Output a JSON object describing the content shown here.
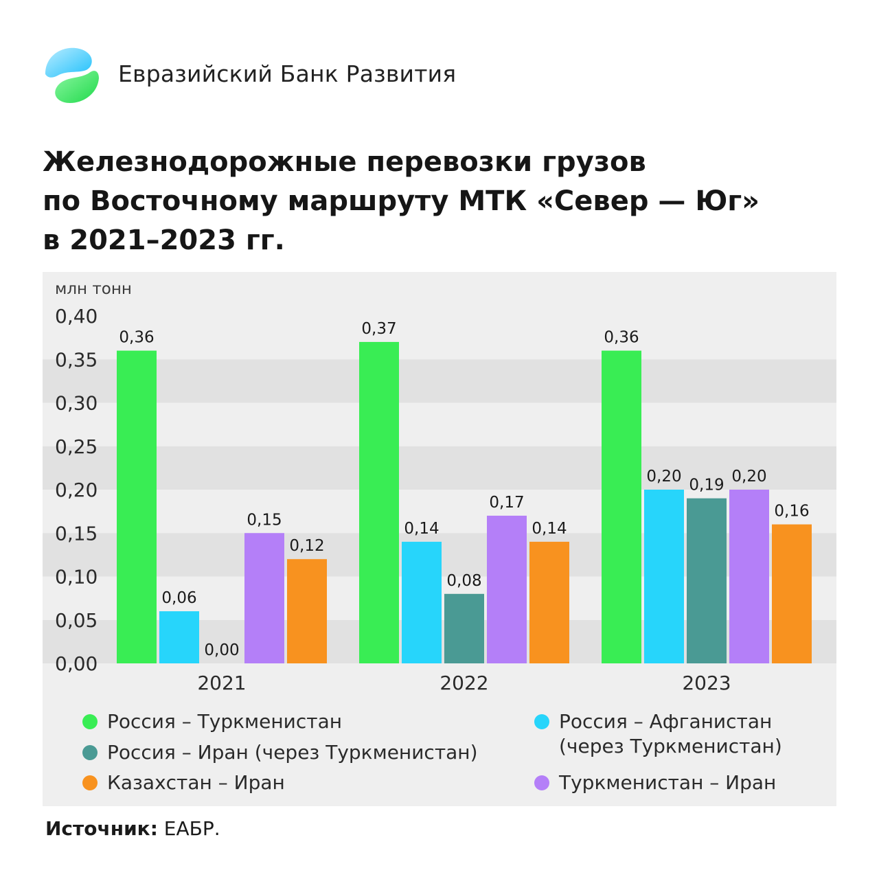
{
  "brand": {
    "name": "Евразийский Банк Развития"
  },
  "title": {
    "line1": "Железнодорожные перевозки грузов",
    "line2": "по Восточному маршруту МТК «Север — Юг»",
    "line3": "в 2021–2023 гг."
  },
  "source": {
    "label": "Источник:",
    "value": "ЕАБР."
  },
  "colors": {
    "logo_blue": "#34c8ff",
    "logo_green": "#3ee86a",
    "panel_bg": "#efefef",
    "stripe_dark": "#e1e1e1"
  },
  "chart_data": {
    "type": "bar",
    "ylabel": "млн тонн",
    "ylim": [
      0,
      0.4
    ],
    "yticks": [
      "0,00",
      "0,05",
      "0,10",
      "0,15",
      "0,20",
      "0,25",
      "0,30",
      "0,35",
      "0,40"
    ],
    "categories": [
      "2021",
      "2022",
      "2023"
    ],
    "grid": "alternating horizontal bands",
    "series": [
      {
        "name": "Россия – Туркменистан",
        "color": "#39ed54",
        "values": [
          0.36,
          0.37,
          0.36
        ],
        "labels": [
          "0,36",
          "0,37",
          "0,36"
        ]
      },
      {
        "name": "Россия – Афганистан (через Туркменистан)",
        "color": "#27d5fb",
        "values": [
          0.06,
          0.14,
          0.2
        ],
        "labels": [
          "0,06",
          "0,14",
          "0,20"
        ]
      },
      {
        "name": "Россия – Иран (через Туркменистан)",
        "color": "#4a9a94",
        "values": [
          0.0,
          0.08,
          0.19
        ],
        "labels": [
          "0,00",
          "0,08",
          "0,19"
        ]
      },
      {
        "name": "Туркменистан – Иран",
        "color": "#b47ff8",
        "values": [
          0.15,
          0.17,
          0.2
        ],
        "labels": [
          "0,15",
          "0,17",
          "0,20"
        ]
      },
      {
        "name": "Казахстан – Иран",
        "color": "#f8921f",
        "values": [
          0.12,
          0.14,
          0.16
        ],
        "labels": [
          "0,12",
          "0,14",
          "0,16"
        ]
      }
    ],
    "legend": {
      "placement": "bottom",
      "items": [
        {
          "series": 0,
          "line1": "Россия – Туркменистан",
          "line2": ""
        },
        {
          "series": 2,
          "line1": "Россия – Иран (через Туркменистан)",
          "line2": ""
        },
        {
          "series": 4,
          "line1": "Казахстан – Иран",
          "line2": ""
        },
        {
          "series": 1,
          "line1": "Россия – Афганистан",
          "line2": "(через Туркменистан)"
        },
        {
          "series": 3,
          "line1": "Туркменистан – Иран",
          "line2": ""
        }
      ]
    }
  }
}
